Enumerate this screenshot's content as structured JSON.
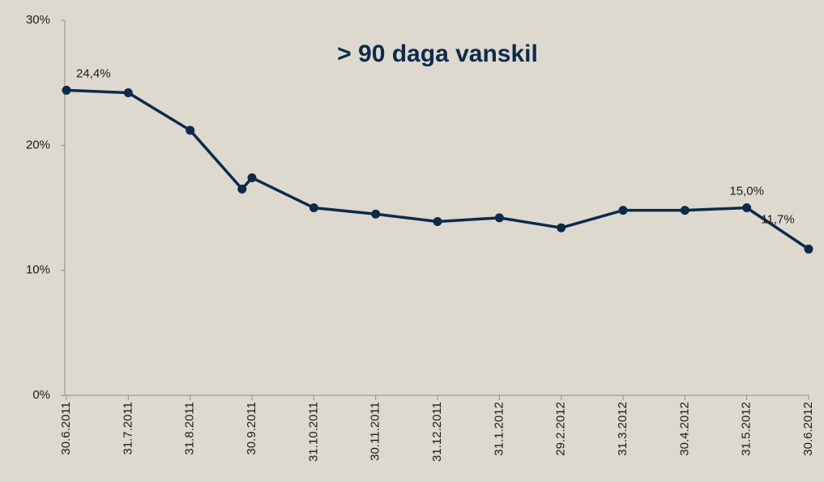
{
  "chart_data": {
    "type": "line",
    "title": "> 90 daga vanskil",
    "categories": [
      "30.6.2011",
      "31.7.2011",
      "31.8.2011",
      null,
      "30.9.2011",
      "31.10.2011",
      "30.11.2011",
      "31.12.2011",
      "31.1.2012",
      "29.2.2012",
      "31.3.2012",
      "30.4.2012",
      "31.5.2012",
      "30.6.2012"
    ],
    "series": [
      {
        "name": null,
        "color": "#0d2a4a",
        "values": [
          24.4,
          24.2,
          21.2,
          16.5,
          17.4,
          15.0,
          14.5,
          13.9,
          14.2,
          13.4,
          14.8,
          14.8,
          15.0,
          11.7
        ],
        "value_labels": [
          "24,4%",
          null,
          null,
          null,
          null,
          null,
          null,
          null,
          null,
          null,
          null,
          null,
          "15,0%",
          "11,7%"
        ]
      }
    ],
    "ylim": [
      0,
      30
    ],
    "yticks": [
      {
        "value": 0,
        "label": "0%"
      },
      {
        "value": 10,
        "label": "10%"
      },
      {
        "value": 20,
        "label": "20%"
      },
      {
        "value": 30,
        "label": "30%"
      }
    ],
    "grid": false
  }
}
